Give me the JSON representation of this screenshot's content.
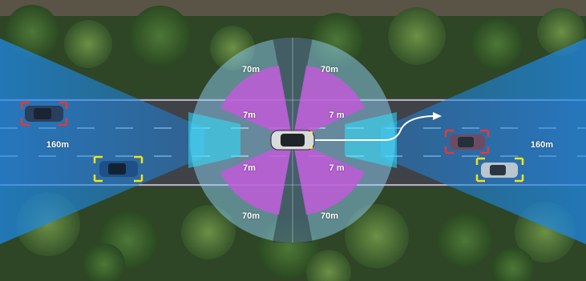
{
  "scene": {
    "ranges": {
      "long_range_left": "160m",
      "long_range_right": "160m",
      "mid_top_left": "70m",
      "mid_top_right": "70m",
      "mid_bottom_left": "70m",
      "mid_bottom_right": "70m",
      "short_top_left": "7m",
      "short_top_right": "7 m",
      "short_bottom_left": "7m",
      "short_bottom_right": "7 m"
    },
    "detections": [
      {
        "lane": "top-left",
        "status": "warning",
        "color": "#e53935"
      },
      {
        "lane": "bottom-left",
        "status": "tracked",
        "color": "#f5e11a"
      },
      {
        "lane": "top-right",
        "status": "warning",
        "color": "#e53935"
      },
      {
        "lane": "bottom-right",
        "status": "tracked",
        "color": "#f5e11a"
      }
    ],
    "maneuver": "lane-change-left",
    "colors": {
      "long_range": "#1e88e5",
      "mid_range": "#7ec8f0",
      "short_range": "#c05ad8",
      "blind_spot": "#2ee0ff",
      "warning_box": "#e53935",
      "tracked_box": "#f5e11a"
    }
  }
}
